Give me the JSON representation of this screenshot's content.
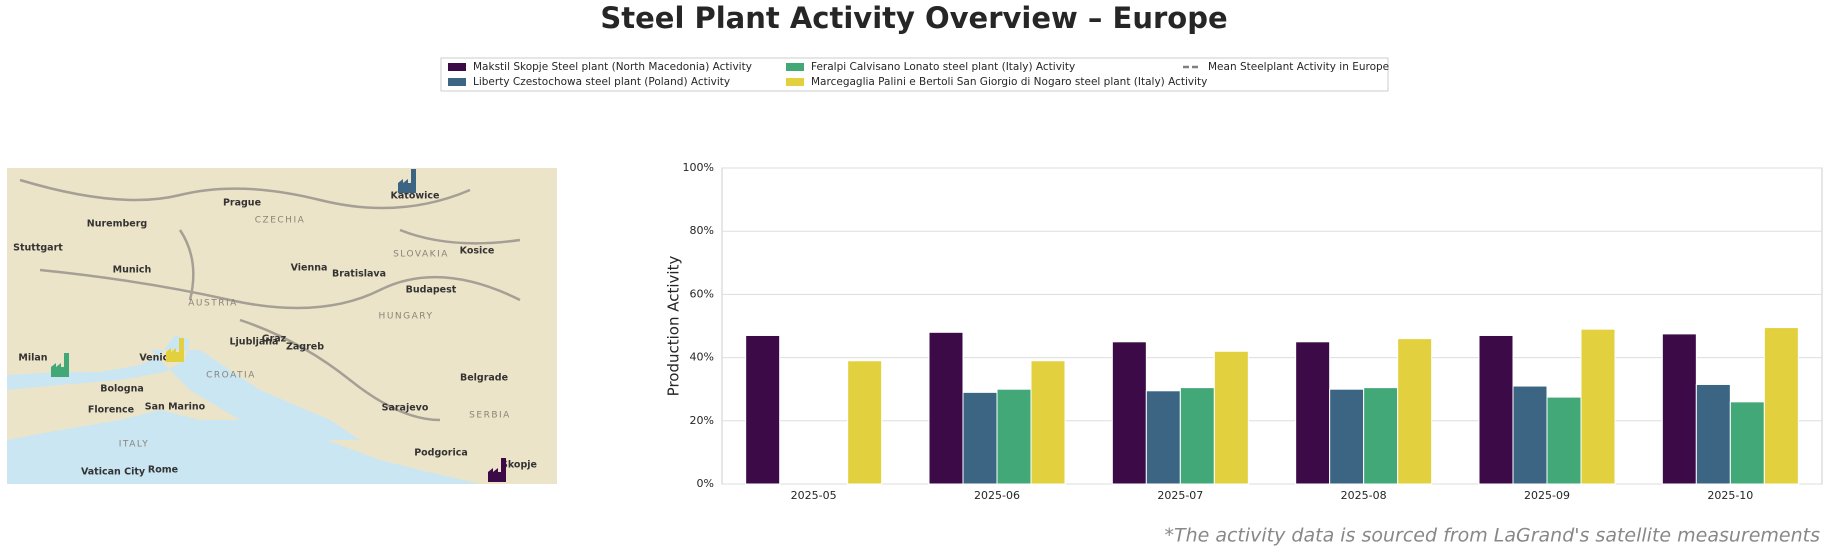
{
  "chart_data": {
    "type": "bar",
    "title": "Steel Plant Activity Overview – Europe",
    "ylabel": "Production Activity",
    "footnote": "*The activity data is sourced from LaGrand's satellite measurements",
    "categories": [
      "2025-05",
      "2025-06",
      "2025-07",
      "2025-08",
      "2025-09",
      "2025-10"
    ],
    "series": [
      {
        "name": "Makstil Skopje Steel plant (North Macedonia) Activity",
        "color": "#3d0a48",
        "values": [
          47,
          48,
          45,
          45,
          47,
          47.5
        ]
      },
      {
        "name": "Liberty Czestochowa steel plant (Poland) Activity",
        "color": "#3b6583",
        "values": [
          null,
          29,
          29.5,
          30,
          31,
          31.5
        ]
      },
      {
        "name": "Feralpi Calvisano Lonato steel plant (Italy) Activity",
        "color": "#43a878",
        "values": [
          null,
          30,
          30.5,
          30.5,
          27.5,
          26
        ]
      },
      {
        "name": "Marcegaglia Palini e Bertoli San Giorgio di Nogaro steel plant (Italy) Activity",
        "color": "#e2d03e",
        "values": [
          39,
          39,
          42,
          46,
          49,
          49.5
        ]
      },
      {
        "name": "Mean Steelplant Activity in Europe",
        "color": "#808080",
        "dashed": true,
        "values": [
          null,
          null,
          null,
          null,
          null,
          null
        ]
      }
    ],
    "ylim": [
      0,
      100
    ],
    "yticks": [
      {
        "value": 0,
        "label": "0%"
      },
      {
        "value": 20,
        "label": "20%"
      },
      {
        "value": 40,
        "label": "40%"
      },
      {
        "value": 60,
        "label": "60%"
      },
      {
        "value": 80,
        "label": "80%"
      },
      {
        "value": 100,
        "label": "100%"
      }
    ],
    "grid": true,
    "legend": "top",
    "map_labels": [
      "Prague",
      "CZECHIA",
      "Munich",
      "Vienna",
      "Bratislava",
      "Budapest",
      "AUSTRIA",
      "HUNGARY",
      "SLOVAKIA",
      "Ljubljana",
      "Zagreb",
      "Milan",
      "Venice",
      "CROATIA",
      "Belgrade",
      "Bologna",
      "San Marino",
      "Florence",
      "Sarajevo",
      "SERBIA",
      "ITALY",
      "Rome",
      "Vatican City",
      "Podgorica",
      "Katowice",
      "Nuremberg",
      "Stuttgart",
      "Skopje",
      "Graz",
      "Kosice"
    ]
  }
}
